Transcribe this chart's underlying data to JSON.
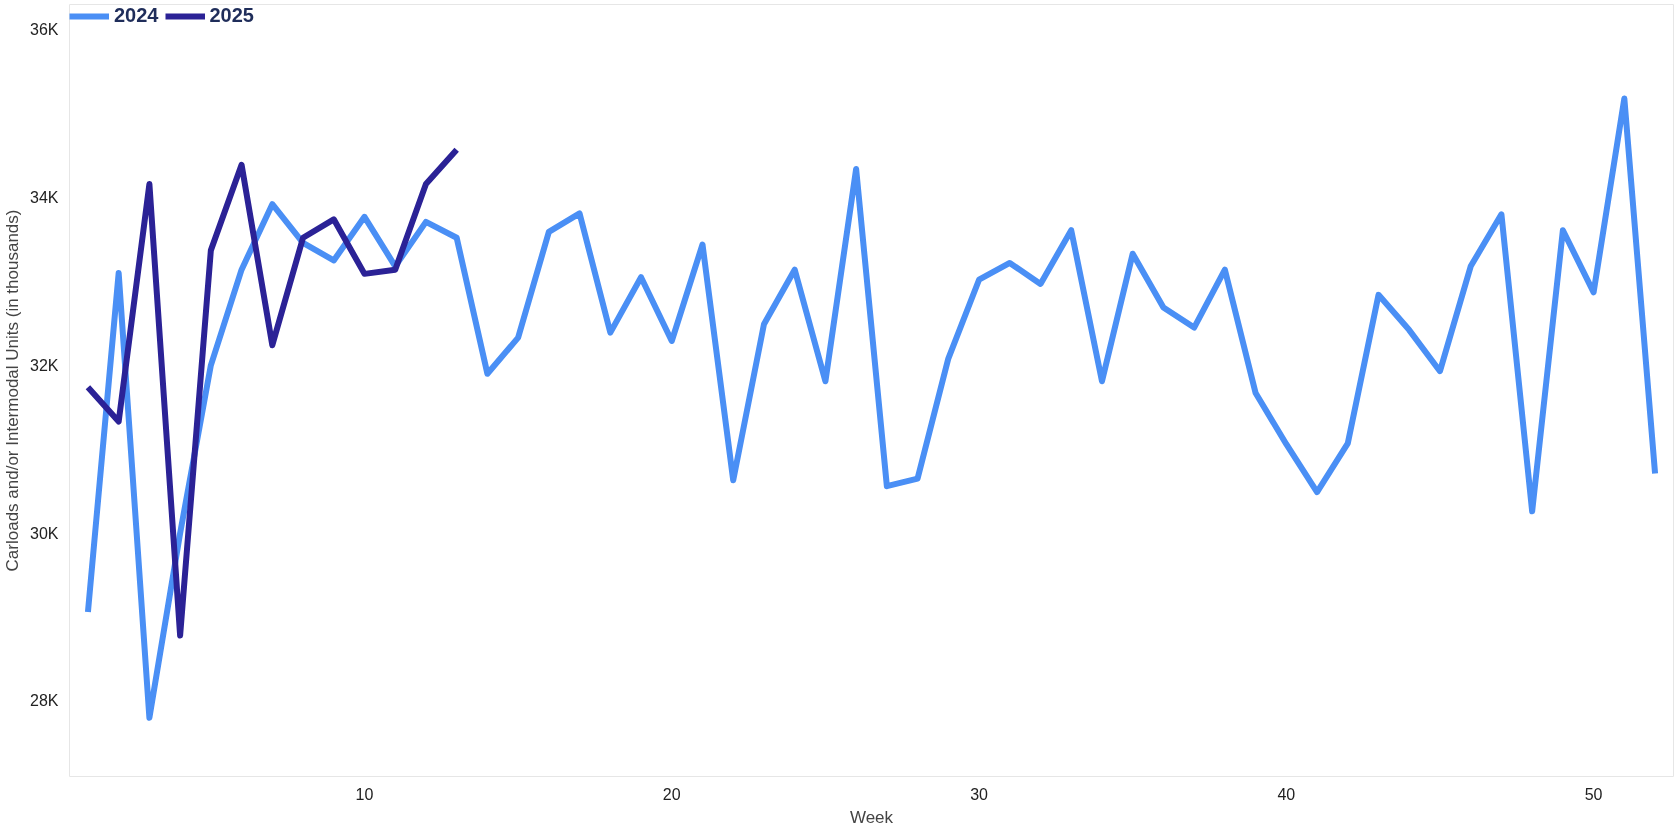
{
  "chart_data": {
    "type": "line",
    "xlabel": "Week",
    "ylabel": "Carloads and/or Intermodal Units (in thousands)",
    "x": [
      1,
      2,
      3,
      4,
      5,
      6,
      7,
      8,
      9,
      10,
      11,
      12,
      13,
      14,
      15,
      16,
      17,
      18,
      19,
      20,
      21,
      22,
      23,
      24,
      25,
      26,
      27,
      28,
      29,
      30,
      31,
      32,
      33,
      34,
      35,
      36,
      37,
      38,
      39,
      40,
      41,
      42,
      43,
      44,
      45,
      46,
      47,
      48,
      49,
      50,
      51,
      52
    ],
    "series": [
      {
        "name": "2024",
        "color": "#4a8ff5",
        "values": [
          29.06,
          33.1,
          27.8,
          30.0,
          32.0,
          33.14,
          33.92,
          33.46,
          33.25,
          33.77,
          33.18,
          33.71,
          33.52,
          31.9,
          32.33,
          33.59,
          33.81,
          32.39,
          33.05,
          32.29,
          33.44,
          30.63,
          32.49,
          33.14,
          31.81,
          34.34,
          30.56,
          30.65,
          32.08,
          33.02,
          33.22,
          32.97,
          33.61,
          31.81,
          33.33,
          32.69,
          32.45,
          33.14,
          31.67,
          31.06,
          30.49,
          31.07,
          32.84,
          32.42,
          31.93,
          33.18,
          33.8,
          30.26,
          33.61,
          32.87,
          35.18,
          30.71
        ]
      },
      {
        "name": "2025",
        "color": "#2b2296",
        "x": [
          1,
          2,
          3,
          4,
          5,
          6,
          7,
          8,
          9,
          10,
          11,
          12,
          13
        ],
        "values": [
          31.74,
          31.33,
          34.16,
          28.78,
          33.37,
          34.39,
          32.24,
          33.52,
          33.74,
          33.09,
          33.14,
          34.16,
          34.57
        ]
      }
    ],
    "xlim": [
      0.4,
      52.6
    ],
    "ylim": [
      27.1,
      36.3
    ],
    "xticks": [
      10,
      20,
      30,
      40,
      50
    ],
    "yticks": [
      {
        "value": 28,
        "label": "28K"
      },
      {
        "value": 30,
        "label": "30K"
      },
      {
        "value": 32,
        "label": "32K"
      },
      {
        "value": 34,
        "label": "34K"
      },
      {
        "value": 36,
        "label": "36K"
      }
    ],
    "grid": false,
    "legend": "top left",
    "marker": "none",
    "line_style": "solid"
  }
}
